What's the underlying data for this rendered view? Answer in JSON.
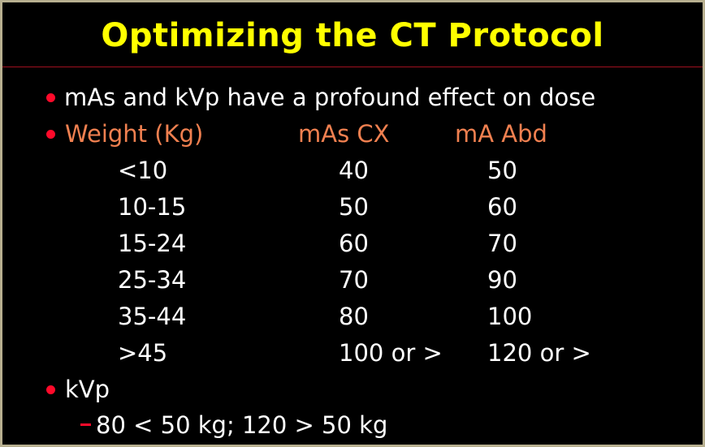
{
  "title": "Optimizing the CT Protocol",
  "bullets": {
    "intro": "mAs and kVp have a profound effect on dose",
    "kvp": "kVp",
    "kvp_sub": "80 < 50 kg; 120 > 50 kg"
  },
  "table": {
    "headers": [
      "Weight (Kg)",
      "mAs CX",
      "mA Abd"
    ],
    "rows": [
      [
        "<10",
        "40",
        "50"
      ],
      [
        "10-15",
        "50",
        "60"
      ],
      [
        "15-24",
        "60",
        "70"
      ],
      [
        "25-34",
        "70",
        "90"
      ],
      [
        "35-44",
        "80",
        "100"
      ],
      [
        ">45",
        "100 or >",
        "120 or >"
      ]
    ]
  },
  "colors": {
    "title": "#ffff00",
    "bullet": "#ff0a2a",
    "header": "#f08050",
    "background": "#000000"
  }
}
